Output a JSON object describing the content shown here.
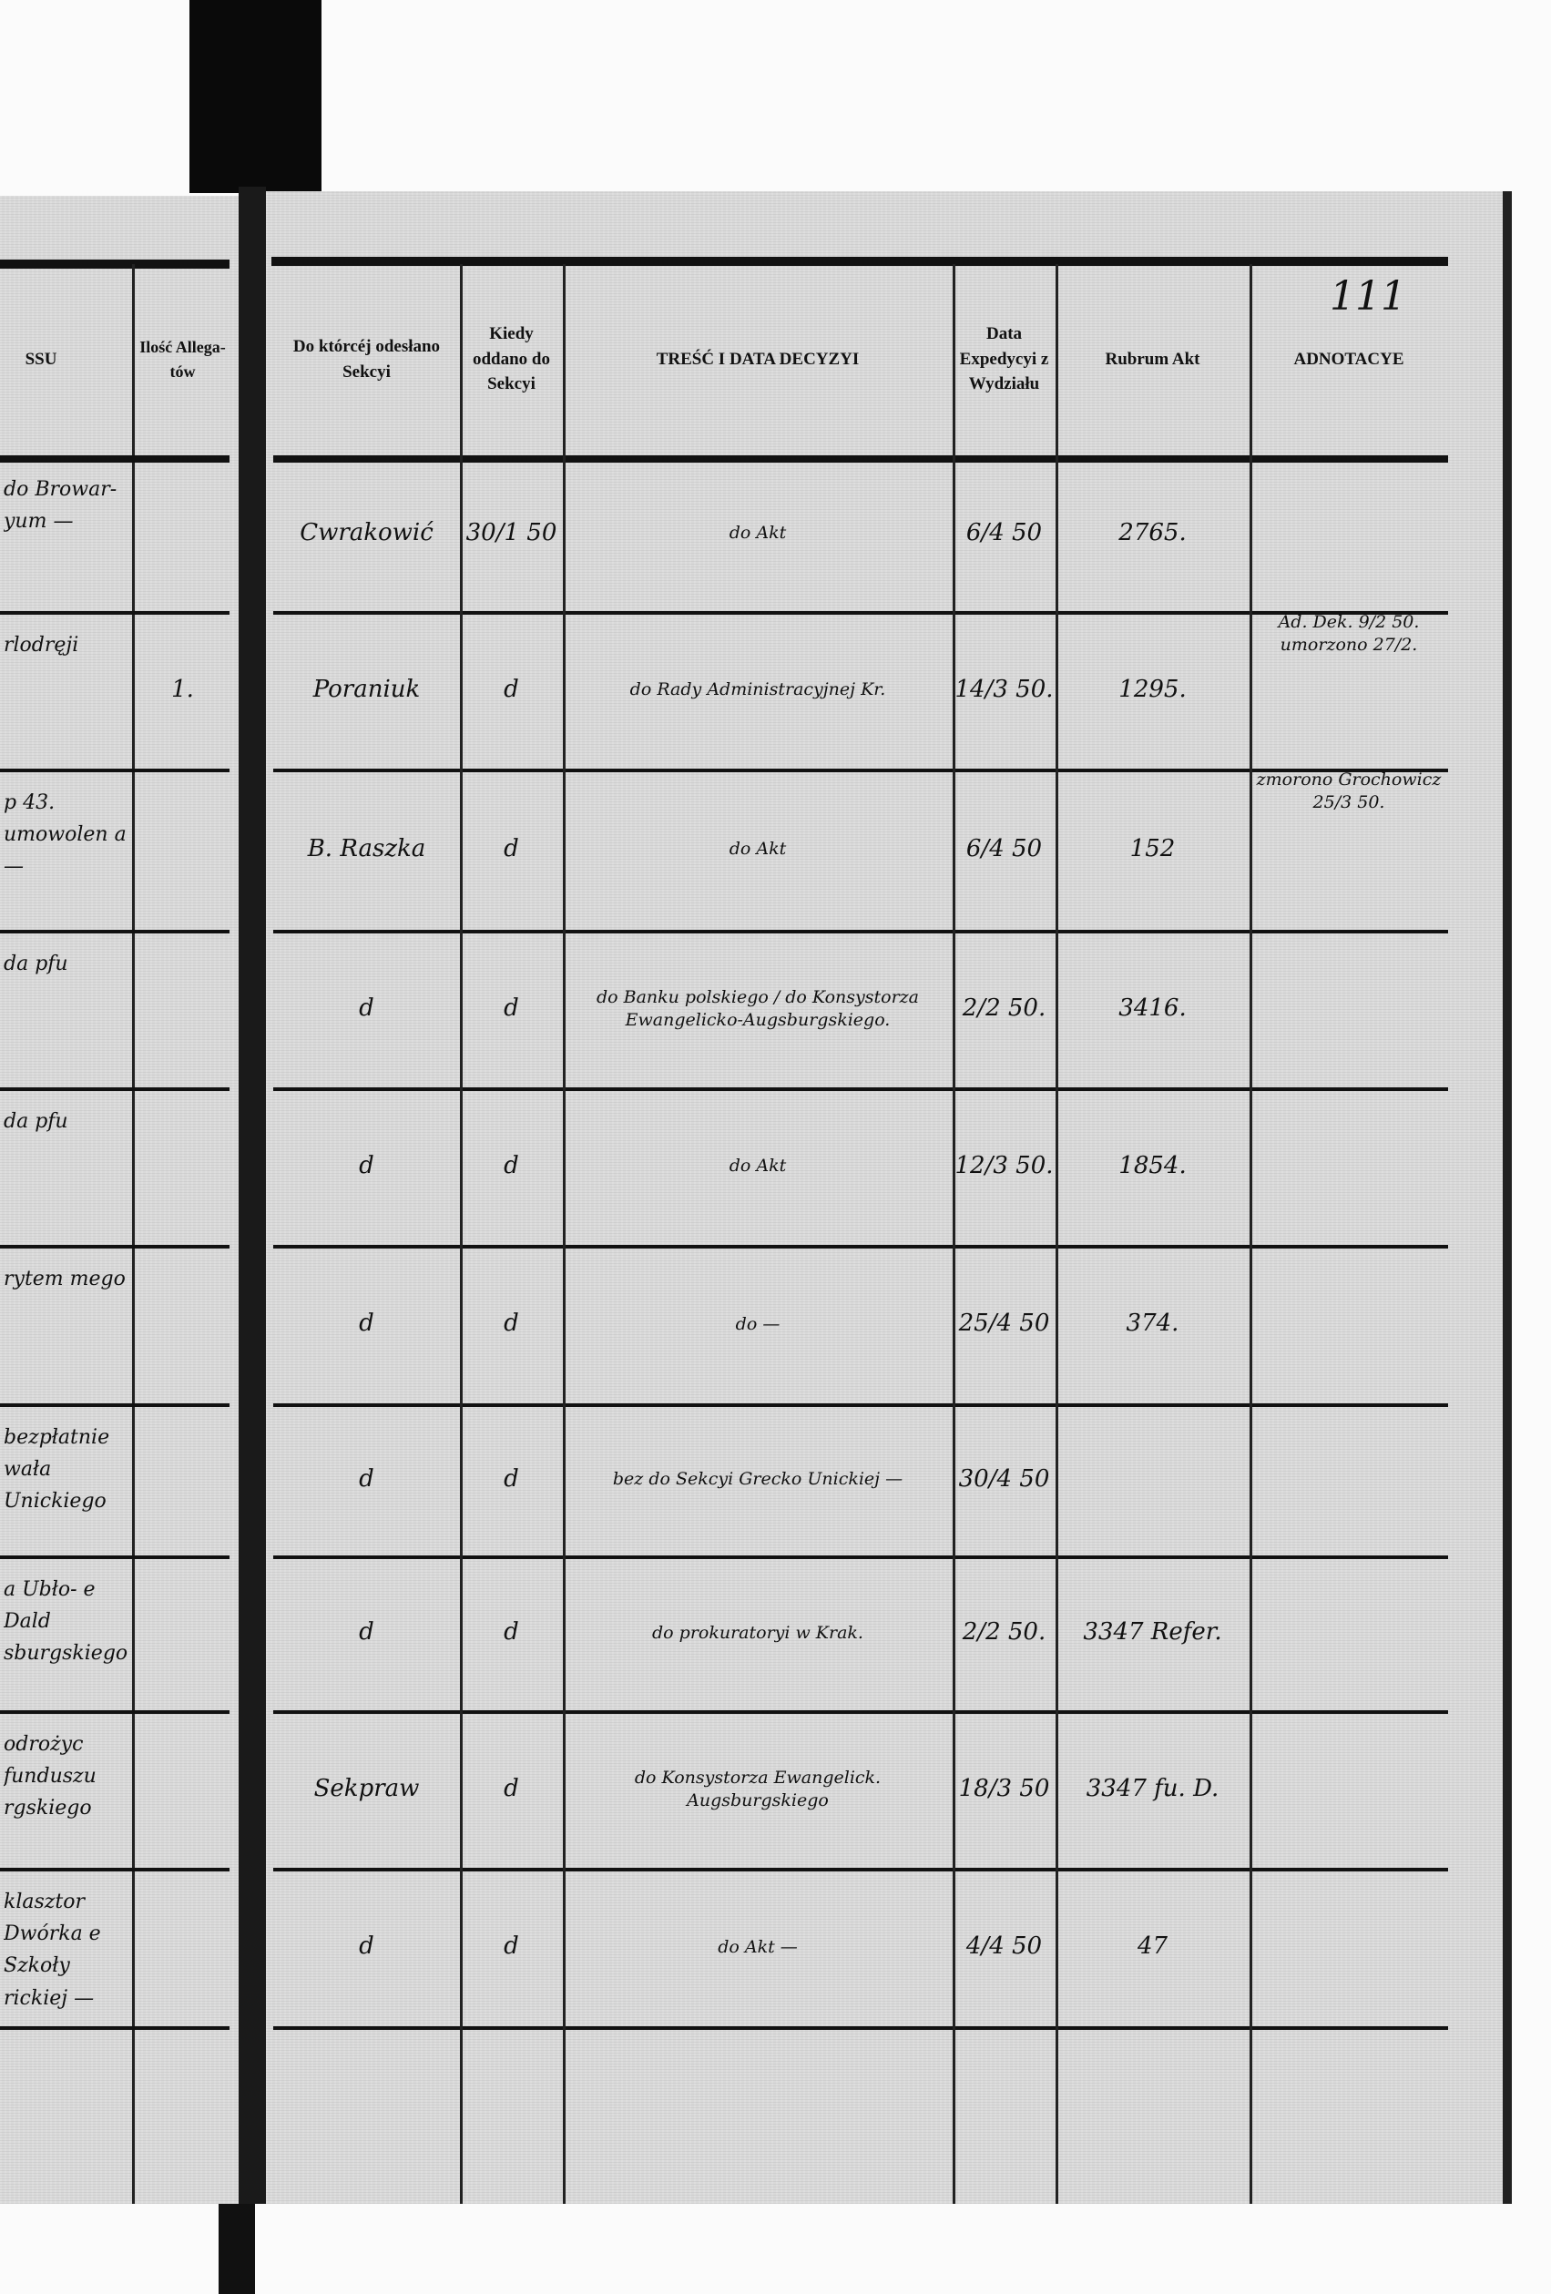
{
  "page_number": "111",
  "left_page": {
    "headers": {
      "process": "SSU",
      "allegata": "Ilość Allega-tów"
    },
    "rows": [
      {
        "text": "do Browar- yum —",
        "allegata": ""
      },
      {
        "text": "rlodręji",
        "allegata": "1."
      },
      {
        "text": "p 43. umowolen a —",
        "allegata": ""
      },
      {
        "text": "da pfu",
        "allegata": ""
      },
      {
        "text": "da pfu",
        "allegata": ""
      },
      {
        "text": "rytem mego",
        "allegata": ""
      },
      {
        "text": "bezpłatnie wała Unickiego",
        "allegata": ""
      },
      {
        "text": "a Ubło- e Dald sburgskiego",
        "allegata": ""
      },
      {
        "text": "odrożyc funduszu rgskiego",
        "allegata": ""
      },
      {
        "text": "klasztor Dwórka e Szkoły rickiej —",
        "allegata": ""
      }
    ]
  },
  "right_page": {
    "headers": {
      "section": "Do którcéj odesłano Sekcyi",
      "when": "Kiedy oddano do Sekcyi",
      "content": "TREŚĆ I DATA DECYZYI",
      "expedition": "Data Expedycyi z Wydziału",
      "rubrum": "Rubrum Akt",
      "notes": "ADNOTACYE"
    },
    "rows": [
      {
        "section": "Cwrakowić",
        "when": "30/1 50",
        "content": "do Akt",
        "expedition": "6/4 50",
        "rubrum": "2765.",
        "notes": ""
      },
      {
        "section": "Poraniuk",
        "when": "d",
        "content": "do Rady Administracyjnej Kr.",
        "expedition": "14/3 50.",
        "rubrum": "1295.",
        "notes": "Ad. Dek. 9/2 50. umorzono 27/2."
      },
      {
        "section": "B. Raszka",
        "when": "d",
        "content": "do Akt",
        "expedition": "6/4 50",
        "rubrum": "152",
        "notes": "zmorono Grochowicz 25/3 50."
      },
      {
        "section": "d",
        "when": "d",
        "content": "do Banku polskiego / do Konsystorza Ewangelicko-Augsburgskiego.",
        "expedition": "2/2 50.",
        "rubrum": "3416.",
        "notes": ""
      },
      {
        "section": "d",
        "when": "d",
        "content": "do Akt",
        "expedition": "12/3 50.",
        "rubrum": "1854.",
        "notes": ""
      },
      {
        "section": "d",
        "when": "d",
        "content": "do —",
        "expedition": "25/4 50",
        "rubrum": "374.",
        "notes": ""
      },
      {
        "section": "d",
        "when": "d",
        "content": "bez do Sekcyi Grecko Unickiej —",
        "expedition": "30/4 50",
        "rubrum": "",
        "notes": ""
      },
      {
        "section": "d",
        "when": "d",
        "content": "do prokuratoryi w Krak.",
        "expedition": "2/2 50.",
        "rubrum": "3347 Refer.",
        "notes": ""
      },
      {
        "section": "Sekpraw",
        "when": "d",
        "content": "do Konsystorza Ewangelick. Augsburgskiego",
        "expedition": "18/3 50",
        "rubrum": "3347 fu. D.",
        "notes": ""
      },
      {
        "section": "d",
        "when": "d",
        "content": "do Akt —",
        "expedition": "4/4 50",
        "rubrum": "47",
        "notes": ""
      }
    ]
  }
}
